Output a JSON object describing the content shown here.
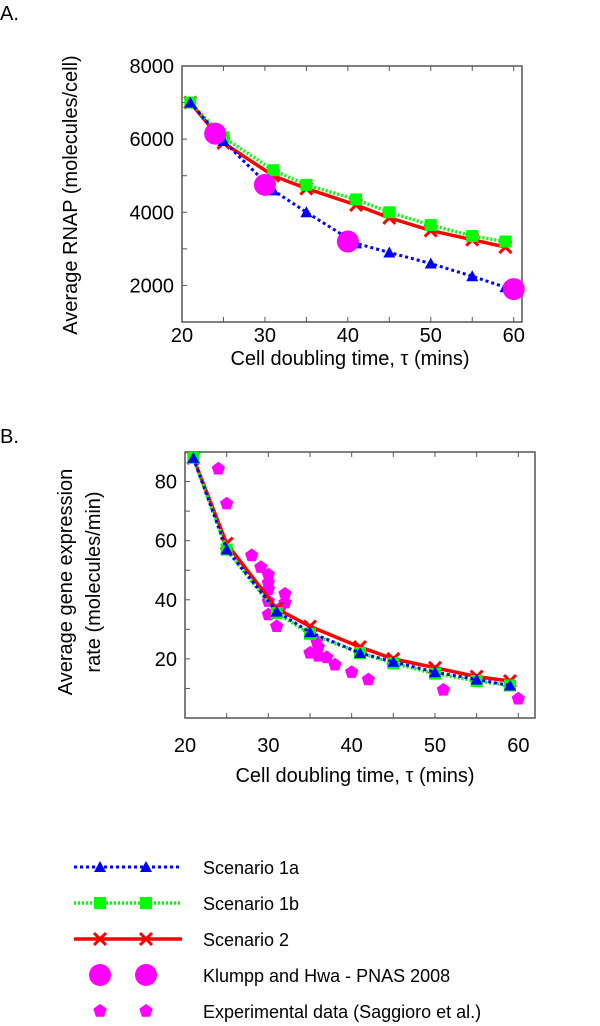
{
  "colors": {
    "s1a": "#0000ff",
    "s1b": "#00ff00",
    "s2": "#ff0000",
    "klumpp": "#ff00ff",
    "exp": "#ff00ff"
  },
  "legend": [
    "Scenario 1a",
    "Scenario 1b",
    "Scenario 2",
    "Klumpp and Hwa - PNAS 2008",
    "Experimental data (Saggioro et al.)"
  ],
  "chart_data": [
    {
      "type": "line",
      "panel_label": "A.",
      "xlabel": "Cell doubling time, τ (mins)",
      "ylabel": "Average RNAP (molecules/cell)",
      "xlim": [
        20,
        61
      ],
      "ylim": [
        1000,
        8000
      ],
      "xticks": [
        20,
        30,
        40,
        50,
        60
      ],
      "yticks": [
        2000,
        4000,
        6000,
        8000
      ],
      "grid": false,
      "x": [
        21,
        25,
        31,
        35,
        41,
        45,
        50,
        55,
        59
      ],
      "series": [
        {
          "name": "Scenario 1a",
          "key": "s1a",
          "values": [
            7000,
            5950,
            4600,
            4000,
            3150,
            2900,
            2600,
            2250,
            1950
          ]
        },
        {
          "name": "Scenario 1b",
          "key": "s1b",
          "values": [
            7000,
            6050,
            5150,
            4750,
            4350,
            4000,
            3650,
            3350,
            3200
          ]
        },
        {
          "name": "Scenario 2",
          "key": "s2",
          "values": [
            7000,
            5900,
            5000,
            4650,
            4200,
            3850,
            3500,
            3250,
            3050
          ]
        }
      ],
      "klumpp": [
        [
          24,
          6150
        ],
        [
          30,
          4750
        ],
        [
          40,
          3200
        ],
        [
          60,
          1900
        ]
      ]
    },
    {
      "type": "line",
      "panel_label": "B.",
      "xlabel": "Cell doubling time, τ (mins)",
      "ylabel": [
        "Average gene expression",
        "rate (molecules/min)"
      ],
      "xlim": [
        20,
        62
      ],
      "ylim": [
        0,
        90
      ],
      "xticks": [
        20,
        30,
        40,
        50,
        60
      ],
      "yticks": [
        20,
        40,
        60,
        80
      ],
      "grid": false,
      "x": [
        21,
        25,
        31,
        35,
        41,
        45,
        50,
        55,
        59
      ],
      "series": [
        {
          "name": "Scenario 1a",
          "key": "s1a",
          "values": [
            88,
            57,
            36,
            29,
            22,
            19,
            15.5,
            13,
            11
          ]
        },
        {
          "name": "Scenario 1b",
          "key": "s1b",
          "values": [
            88,
            57,
            35.5,
            28.5,
            22,
            18.5,
            15,
            12.5,
            11
          ]
        },
        {
          "name": "Scenario 2",
          "key": "s2",
          "values": [
            88,
            59,
            37,
            31,
            24,
            20,
            17,
            14,
            12.5
          ]
        }
      ],
      "experimental": [
        [
          24,
          84.3
        ],
        [
          25,
          72.5
        ],
        [
          28,
          55
        ],
        [
          29.1,
          51
        ],
        [
          30,
          48.5
        ],
        [
          30,
          45.7
        ],
        [
          30,
          43.5
        ],
        [
          30,
          39.5
        ],
        [
          30,
          35
        ],
        [
          31,
          31
        ],
        [
          32,
          42
        ],
        [
          32,
          39
        ],
        [
          31.4,
          37
        ],
        [
          35.8,
          26
        ],
        [
          36,
          24
        ],
        [
          35,
          22
        ],
        [
          36,
          21
        ],
        [
          37,
          20.5
        ],
        [
          38,
          18
        ],
        [
          40,
          15.5
        ],
        [
          42,
          13
        ],
        [
          51,
          9.5
        ],
        [
          60,
          6.5
        ]
      ]
    }
  ]
}
